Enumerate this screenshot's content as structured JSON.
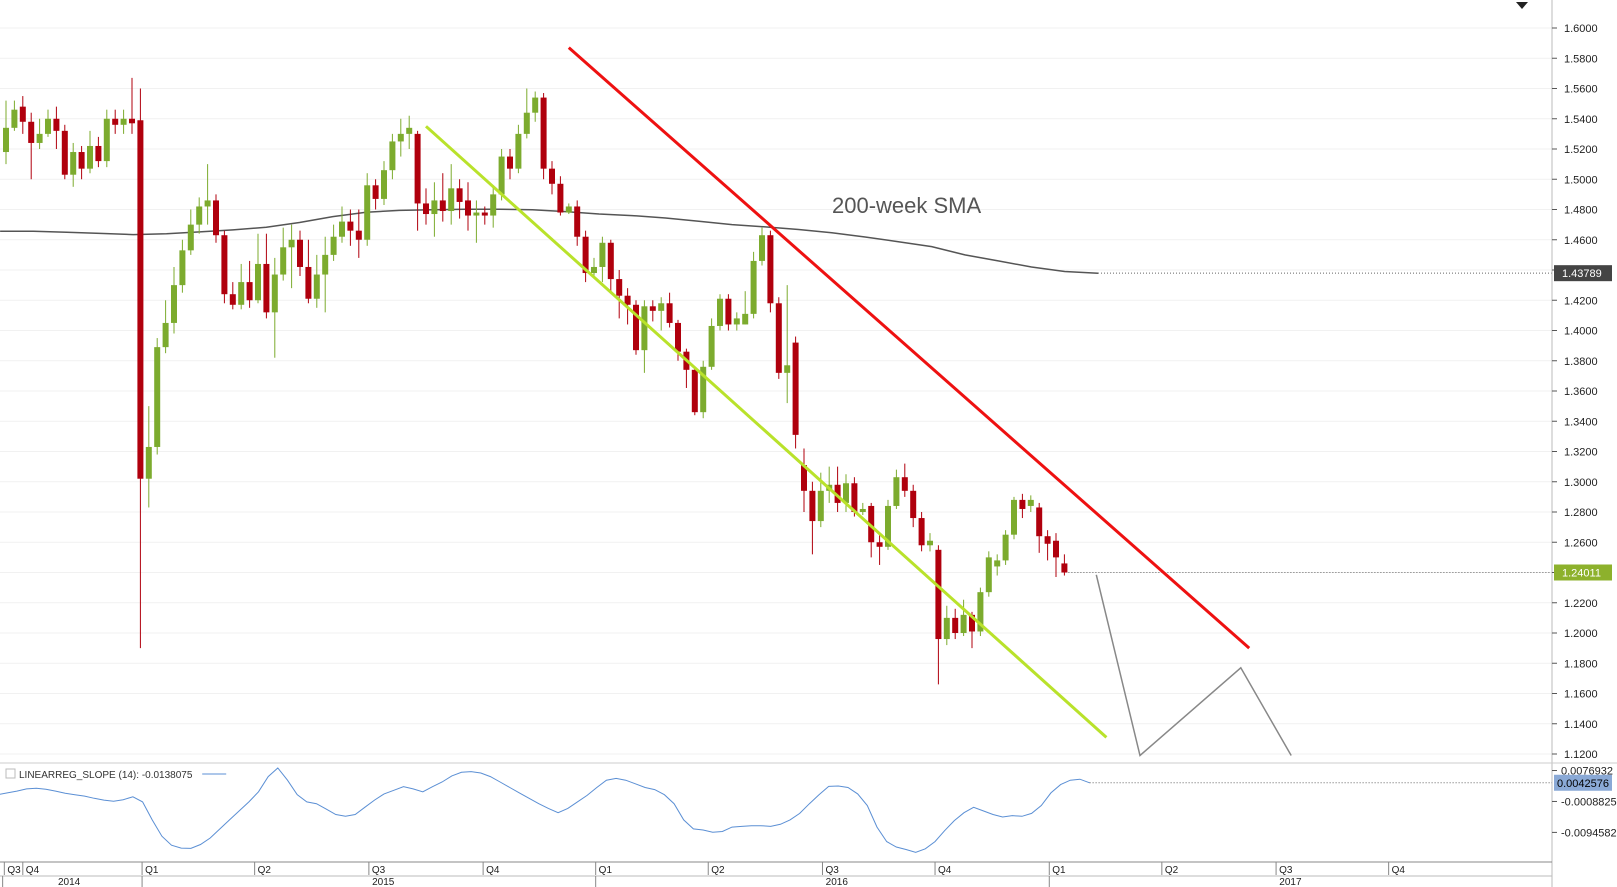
{
  "chart_data": {
    "type": "candlestick",
    "colors": {
      "up": "#7cab2e",
      "down": "#b0000d",
      "sma": "#555555",
      "support": "#b9e22b",
      "resistance": "#ee1111",
      "projection": "#888888",
      "indicator": "#5b8fd4"
    },
    "price_axis": {
      "ticks": [
        "1.6000",
        "1.5800",
        "1.5600",
        "1.5400",
        "1.5200",
        "1.5000",
        "1.4800",
        "1.4600",
        "1.4400",
        "1.4200",
        "1.4000",
        "1.3800",
        "1.3600",
        "1.3400",
        "1.3200",
        "1.3000",
        "1.2800",
        "1.2600",
        "1.2400",
        "1.2200",
        "1.2000",
        "1.1800",
        "1.1600",
        "1.1400",
        "1.1200"
      ],
      "ylim": [
        1.12,
        1.6
      ]
    },
    "candles": [
      {
        "o": 1.518,
        "c": 1.534,
        "h": 1.552,
        "l": 1.51
      },
      {
        "o": 1.534,
        "c": 1.546,
        "h": 1.552,
        "l": 1.532
      },
      {
        "o": 1.548,
        "c": 1.538,
        "h": 1.555,
        "l": 1.53
      },
      {
        "o": 1.538,
        "c": 1.524,
        "h": 1.544,
        "l": 1.5
      },
      {
        "o": 1.524,
        "c": 1.53,
        "h": 1.54,
        "l": 1.52
      },
      {
        "o": 1.53,
        "c": 1.54,
        "h": 1.546,
        "l": 1.528
      },
      {
        "o": 1.54,
        "c": 1.532,
        "h": 1.548,
        "l": 1.52
      },
      {
        "o": 1.532,
        "c": 1.503,
        "h": 1.536,
        "l": 1.5
      },
      {
        "o": 1.503,
        "c": 1.518,
        "h": 1.524,
        "l": 1.495
      },
      {
        "o": 1.518,
        "c": 1.507,
        "h": 1.522,
        "l": 1.5
      },
      {
        "o": 1.507,
        "c": 1.522,
        "h": 1.532,
        "l": 1.504
      },
      {
        "o": 1.522,
        "c": 1.512,
        "h": 1.528,
        "l": 1.508
      },
      {
        "o": 1.512,
        "c": 1.54,
        "h": 1.546,
        "l": 1.508
      },
      {
        "o": 1.54,
        "c": 1.536,
        "h": 1.546,
        "l": 1.53
      },
      {
        "o": 1.536,
        "c": 1.54,
        "h": 1.546,
        "l": 1.53
      },
      {
        "o": 1.54,
        "c": 1.537,
        "h": 1.567,
        "l": 1.53
      },
      {
        "o": 1.539,
        "c": 1.302,
        "h": 1.56,
        "l": 1.19
      },
      {
        "o": 1.302,
        "c": 1.323,
        "h": 1.35,
        "l": 1.283
      },
      {
        "o": 1.323,
        "c": 1.389,
        "h": 1.395,
        "l": 1.318
      },
      {
        "o": 1.389,
        "c": 1.405,
        "h": 1.42,
        "l": 1.385
      },
      {
        "o": 1.405,
        "c": 1.43,
        "h": 1.442,
        "l": 1.398
      },
      {
        "o": 1.43,
        "c": 1.453,
        "h": 1.46,
        "l": 1.425
      },
      {
        "o": 1.453,
        "c": 1.47,
        "h": 1.48,
        "l": 1.45
      },
      {
        "o": 1.47,
        "c": 1.482,
        "h": 1.488,
        "l": 1.464
      },
      {
        "o": 1.482,
        "c": 1.486,
        "h": 1.51,
        "l": 1.47
      },
      {
        "o": 1.486,
        "c": 1.463,
        "h": 1.49,
        "l": 1.458
      },
      {
        "o": 1.463,
        "c": 1.424,
        "h": 1.466,
        "l": 1.418
      },
      {
        "o": 1.424,
        "c": 1.417,
        "h": 1.432,
        "l": 1.414
      },
      {
        "o": 1.417,
        "c": 1.432,
        "h": 1.444,
        "l": 1.414
      },
      {
        "o": 1.432,
        "c": 1.42,
        "h": 1.446,
        "l": 1.415
      },
      {
        "o": 1.42,
        "c": 1.444,
        "h": 1.464,
        "l": 1.418
      },
      {
        "o": 1.444,
        "c": 1.412,
        "h": 1.464,
        "l": 1.408
      },
      {
        "o": 1.412,
        "c": 1.437,
        "h": 1.448,
        "l": 1.382
      },
      {
        "o": 1.437,
        "c": 1.455,
        "h": 1.468,
        "l": 1.433
      },
      {
        "o": 1.455,
        "c": 1.46,
        "h": 1.47,
        "l": 1.428
      },
      {
        "o": 1.46,
        "c": 1.442,
        "h": 1.466,
        "l": 1.436
      },
      {
        "o": 1.442,
        "c": 1.421,
        "h": 1.46,
        "l": 1.418
      },
      {
        "o": 1.421,
        "c": 1.437,
        "h": 1.45,
        "l": 1.415
      },
      {
        "o": 1.437,
        "c": 1.45,
        "h": 1.462,
        "l": 1.412
      },
      {
        "o": 1.45,
        "c": 1.462,
        "h": 1.47,
        "l": 1.446
      },
      {
        "o": 1.462,
        "c": 1.472,
        "h": 1.482,
        "l": 1.458
      },
      {
        "o": 1.472,
        "c": 1.466,
        "h": 1.48,
        "l": 1.456
      },
      {
        "o": 1.466,
        "c": 1.46,
        "h": 1.48,
        "l": 1.448
      },
      {
        "o": 1.46,
        "c": 1.496,
        "h": 1.504,
        "l": 1.456
      },
      {
        "o": 1.496,
        "c": 1.487,
        "h": 1.5,
        "l": 1.48
      },
      {
        "o": 1.487,
        "c": 1.506,
        "h": 1.512,
        "l": 1.483
      },
      {
        "o": 1.506,
        "c": 1.525,
        "h": 1.53,
        "l": 1.5
      },
      {
        "o": 1.525,
        "c": 1.53,
        "h": 1.54,
        "l": 1.515
      },
      {
        "o": 1.53,
        "c": 1.534,
        "h": 1.542,
        "l": 1.52
      },
      {
        "o": 1.53,
        "c": 1.484,
        "h": 1.532,
        "l": 1.466
      },
      {
        "o": 1.484,
        "c": 1.477,
        "h": 1.494,
        "l": 1.47
      },
      {
        "o": 1.477,
        "c": 1.486,
        "h": 1.498,
        "l": 1.462
      },
      {
        "o": 1.486,
        "c": 1.479,
        "h": 1.504,
        "l": 1.472
      },
      {
        "o": 1.479,
        "c": 1.494,
        "h": 1.51,
        "l": 1.47
      },
      {
        "o": 1.494,
        "c": 1.485,
        "h": 1.5,
        "l": 1.474
      },
      {
        "o": 1.486,
        "c": 1.476,
        "h": 1.498,
        "l": 1.466
      },
      {
        "o": 1.476,
        "c": 1.478,
        "h": 1.486,
        "l": 1.458
      },
      {
        "o": 1.478,
        "c": 1.476,
        "h": 1.482,
        "l": 1.47
      },
      {
        "o": 1.476,
        "c": 1.49,
        "h": 1.496,
        "l": 1.468
      },
      {
        "o": 1.49,
        "c": 1.515,
        "h": 1.52,
        "l": 1.486
      },
      {
        "o": 1.515,
        "c": 1.507,
        "h": 1.52,
        "l": 1.5
      },
      {
        "o": 1.507,
        "c": 1.53,
        "h": 1.536,
        "l": 1.504
      },
      {
        "o": 1.53,
        "c": 1.544,
        "h": 1.56,
        "l": 1.527
      },
      {
        "o": 1.544,
        "c": 1.554,
        "h": 1.558,
        "l": 1.538
      },
      {
        "o": 1.554,
        "c": 1.507,
        "h": 1.557,
        "l": 1.5
      },
      {
        "o": 1.507,
        "c": 1.497,
        "h": 1.512,
        "l": 1.49
      },
      {
        "o": 1.497,
        "c": 1.478,
        "h": 1.502,
        "l": 1.476
      },
      {
        "o": 1.478,
        "c": 1.482,
        "h": 1.484,
        "l": 1.477
      },
      {
        "o": 1.482,
        "c": 1.462,
        "h": 1.486,
        "l": 1.456
      },
      {
        "o": 1.462,
        "c": 1.438,
        "h": 1.466,
        "l": 1.432
      },
      {
        "o": 1.438,
        "c": 1.442,
        "h": 1.448,
        "l": 1.436
      },
      {
        "o": 1.442,
        "c": 1.458,
        "h": 1.462,
        "l": 1.432
      },
      {
        "o": 1.458,
        "c": 1.434,
        "h": 1.46,
        "l": 1.425
      },
      {
        "o": 1.434,
        "c": 1.423,
        "h": 1.44,
        "l": 1.408
      },
      {
        "o": 1.423,
        "c": 1.417,
        "h": 1.428,
        "l": 1.404
      },
      {
        "o": 1.417,
        "c": 1.387,
        "h": 1.42,
        "l": 1.384
      },
      {
        "o": 1.387,
        "c": 1.416,
        "h": 1.42,
        "l": 1.372
      },
      {
        "o": 1.416,
        "c": 1.413,
        "h": 1.42,
        "l": 1.406
      },
      {
        "o": 1.413,
        "c": 1.418,
        "h": 1.422,
        "l": 1.4
      },
      {
        "o": 1.418,
        "c": 1.405,
        "h": 1.425,
        "l": 1.402
      },
      {
        "o": 1.405,
        "c": 1.386,
        "h": 1.407,
        "l": 1.38
      },
      {
        "o": 1.386,
        "c": 1.374,
        "h": 1.388,
        "l": 1.362
      },
      {
        "o": 1.374,
        "c": 1.346,
        "h": 1.376,
        "l": 1.344
      },
      {
        "o": 1.346,
        "c": 1.376,
        "h": 1.38,
        "l": 1.342
      },
      {
        "o": 1.376,
        "c": 1.403,
        "h": 1.408,
        "l": 1.374
      },
      {
        "o": 1.403,
        "c": 1.421,
        "h": 1.424,
        "l": 1.4
      },
      {
        "o": 1.421,
        "c": 1.404,
        "h": 1.424,
        "l": 1.4
      },
      {
        "o": 1.404,
        "c": 1.408,
        "h": 1.412,
        "l": 1.4
      },
      {
        "o": 1.404,
        "c": 1.411,
        "h": 1.426,
        "l": 1.404
      },
      {
        "o": 1.411,
        "c": 1.446,
        "h": 1.452,
        "l": 1.408
      },
      {
        "o": 1.446,
        "c": 1.463,
        "h": 1.468,
        "l": 1.443
      },
      {
        "o": 1.463,
        "c": 1.418,
        "h": 1.466,
        "l": 1.412
      },
      {
        "o": 1.418,
        "c": 1.372,
        "h": 1.422,
        "l": 1.368
      },
      {
        "o": 1.372,
        "c": 1.377,
        "h": 1.43,
        "l": 1.352
      },
      {
        "o": 1.392,
        "c": 1.331,
        "h": 1.396,
        "l": 1.322
      },
      {
        "o": 1.311,
        "c": 1.294,
        "h": 1.322,
        "l": 1.28
      },
      {
        "o": 1.294,
        "c": 1.274,
        "h": 1.3,
        "l": 1.252
      },
      {
        "o": 1.274,
        "c": 1.294,
        "h": 1.306,
        "l": 1.27
      },
      {
        "o": 1.294,
        "c": 1.298,
        "h": 1.31,
        "l": 1.286
      },
      {
        "o": 1.298,
        "c": 1.286,
        "h": 1.31,
        "l": 1.28
      },
      {
        "o": 1.286,
        "c": 1.299,
        "h": 1.305,
        "l": 1.28
      },
      {
        "o": 1.299,
        "c": 1.28,
        "h": 1.303,
        "l": 1.277
      },
      {
        "o": 1.28,
        "c": 1.282,
        "h": 1.286,
        "l": 1.278
      },
      {
        "o": 1.284,
        "c": 1.26,
        "h": 1.286,
        "l": 1.25
      },
      {
        "o": 1.26,
        "c": 1.257,
        "h": 1.266,
        "l": 1.245
      },
      {
        "o": 1.257,
        "c": 1.284,
        "h": 1.288,
        "l": 1.255
      },
      {
        "o": 1.284,
        "c": 1.303,
        "h": 1.308,
        "l": 1.282
      },
      {
        "o": 1.303,
        "c": 1.294,
        "h": 1.312,
        "l": 1.29
      },
      {
        "o": 1.294,
        "c": 1.276,
        "h": 1.298,
        "l": 1.27
      },
      {
        "o": 1.276,
        "c": 1.258,
        "h": 1.28,
        "l": 1.254
      },
      {
        "o": 1.258,
        "c": 1.261,
        "h": 1.266,
        "l": 1.254
      },
      {
        "o": 1.255,
        "c": 1.196,
        "h": 1.258,
        "l": 1.166
      },
      {
        "o": 1.196,
        "c": 1.21,
        "h": 1.218,
        "l": 1.192
      },
      {
        "o": 1.21,
        "c": 1.2,
        "h": 1.216,
        "l": 1.196
      },
      {
        "o": 1.2,
        "c": 1.212,
        "h": 1.222,
        "l": 1.198
      },
      {
        "o": 1.212,
        "c": 1.201,
        "h": 1.214,
        "l": 1.19
      },
      {
        "o": 1.201,
        "c": 1.227,
        "h": 1.23,
        "l": 1.198
      },
      {
        "o": 1.227,
        "c": 1.25,
        "h": 1.254,
        "l": 1.224
      },
      {
        "o": 1.244,
        "c": 1.248,
        "h": 1.252,
        "l": 1.238
      },
      {
        "o": 1.248,
        "c": 1.265,
        "h": 1.268,
        "l": 1.245
      },
      {
        "o": 1.265,
        "c": 1.288,
        "h": 1.29,
        "l": 1.262
      },
      {
        "o": 1.288,
        "c": 1.282,
        "h": 1.292,
        "l": 1.276
      },
      {
        "o": 1.284,
        "c": 1.288,
        "h": 1.291,
        "l": 1.28
      },
      {
        "o": 1.283,
        "c": 1.264,
        "h": 1.286,
        "l": 1.253
      },
      {
        "o": 1.264,
        "c": 1.259,
        "h": 1.268,
        "l": 1.248
      },
      {
        "o": 1.261,
        "c": 1.25,
        "h": 1.266,
        "l": 1.237
      },
      {
        "o": 1.246,
        "c": 1.24,
        "h": 1.252,
        "l": 1.238
      }
    ],
    "sma": {
      "label": "200-week SMA",
      "values": [
        1.4656,
        1.4656,
        1.465,
        1.4642,
        1.4634,
        1.464,
        1.4652,
        1.4665,
        1.4682,
        1.4714,
        1.4753,
        1.4782,
        1.4794,
        1.4799,
        1.4802,
        1.4802,
        1.4798,
        1.4786,
        1.477,
        1.476,
        1.4744,
        1.4722,
        1.47,
        1.4685,
        1.4668,
        1.4646,
        1.4618,
        1.4587,
        1.4555,
        1.45,
        1.446,
        1.442,
        1.439,
        1.4379
      ]
    },
    "sma_badge": "1.43789",
    "last_badge": "1.24011",
    "resistance_line": {
      "from": {
        "idx": 67,
        "price": 1.587
      },
      "to": {
        "idx": 148,
        "price": 1.19
      }
    },
    "support_line": {
      "from": {
        "idx": 50,
        "price": 1.535
      },
      "to": {
        "idx": 131,
        "price": 1.131
      }
    },
    "projection": [
      {
        "idx": 129.8,
        "price": 1.2385
      },
      {
        "idx": 135,
        "price": 1.119
      },
      {
        "idx": 147,
        "price": 1.177
      },
      {
        "idx": 153,
        "price": 1.119
      }
    ],
    "indicator": {
      "label": "LINEARREG_SLOPE (14): -0.0138075",
      "ticks": [
        "0.0076932",
        "-0.0008825",
        "-0.0094582"
      ],
      "last_badge": "0.0042576",
      "ylim": [
        -0.016,
        0.0095
      ],
      "values": [
        0.001,
        0.0015,
        0.002,
        0.0026,
        0.0028,
        0.0025,
        0.002,
        0.0014,
        0.001,
        0.0006,
        0.0,
        -0.0005,
        -0.0008,
        -0.0004,
        0.0004,
        -0.001,
        -0.006,
        -0.0105,
        -0.013,
        -0.0138,
        -0.0139,
        -0.0128,
        -0.011,
        -0.0085,
        -0.006,
        -0.0035,
        -0.001,
        0.0018,
        0.006,
        0.0084,
        0.005,
        0.001,
        -0.001,
        -0.0015,
        -0.003,
        -0.0045,
        -0.005,
        -0.0045,
        -0.0025,
        -0.0005,
        0.0012,
        0.0022,
        0.0032,
        0.0026,
        0.0018,
        0.0032,
        0.0045,
        0.0062,
        0.0072,
        0.0074,
        0.007,
        0.006,
        0.0045,
        0.003,
        0.0015,
        0.0,
        -0.0015,
        -0.0028,
        -0.004,
        -0.0028,
        -0.001,
        0.0008,
        0.003,
        0.005,
        0.0055,
        0.005,
        0.004,
        0.003,
        0.0024,
        0.001,
        -0.0015,
        -0.006,
        -0.0085,
        -0.0088,
        -0.0094,
        -0.0092,
        -0.008,
        -0.0078,
        -0.0076,
        -0.0076,
        -0.0078,
        -0.0072,
        -0.006,
        -0.0042,
        -0.0015,
        0.001,
        0.0033,
        0.0034,
        0.003,
        0.0012,
        -0.002,
        -0.008,
        -0.012,
        -0.0135,
        -0.0142,
        -0.015,
        -0.014,
        -0.012,
        -0.009,
        -0.0062,
        -0.004,
        -0.0025,
        -0.0035,
        -0.0045,
        -0.0052,
        -0.0048,
        -0.005,
        -0.0042,
        -0.002,
        0.0015,
        0.0038,
        0.005,
        0.0053,
        0.0043
      ]
    },
    "time_axis": {
      "quarters": [
        {
          "label": "Q3",
          "idx": -0.2
        },
        {
          "label": "Q4",
          "idx": 2
        },
        {
          "label": "Q1",
          "idx": 16.2
        },
        {
          "label": "Q2",
          "idx": 29.6
        },
        {
          "label": "Q3",
          "idx": 43.2
        },
        {
          "label": "Q4",
          "idx": 56.8
        },
        {
          "label": "Q1",
          "idx": 70.2
        },
        {
          "label": "Q2",
          "idx": 83.6
        },
        {
          "label": "Q3",
          "idx": 97.2
        },
        {
          "label": "Q4",
          "idx": 110.6
        },
        {
          "label": "Q1",
          "idx": 124.2
        },
        {
          "label": "Q2",
          "idx": 137.6
        },
        {
          "label": "Q3",
          "idx": 151.2
        },
        {
          "label": "Q4",
          "idx": 164.6
        }
      ],
      "years": [
        {
          "label": "2014",
          "idx": 2,
          "sep": -0.4
        },
        {
          "label": "2015",
          "idx": 16.2,
          "sep": 16.2
        },
        {
          "label": "2016",
          "idx": 70.2,
          "sep": 70.2
        },
        {
          "label": "2017",
          "idx": 124.2,
          "sep": 124.2
        }
      ]
    }
  }
}
